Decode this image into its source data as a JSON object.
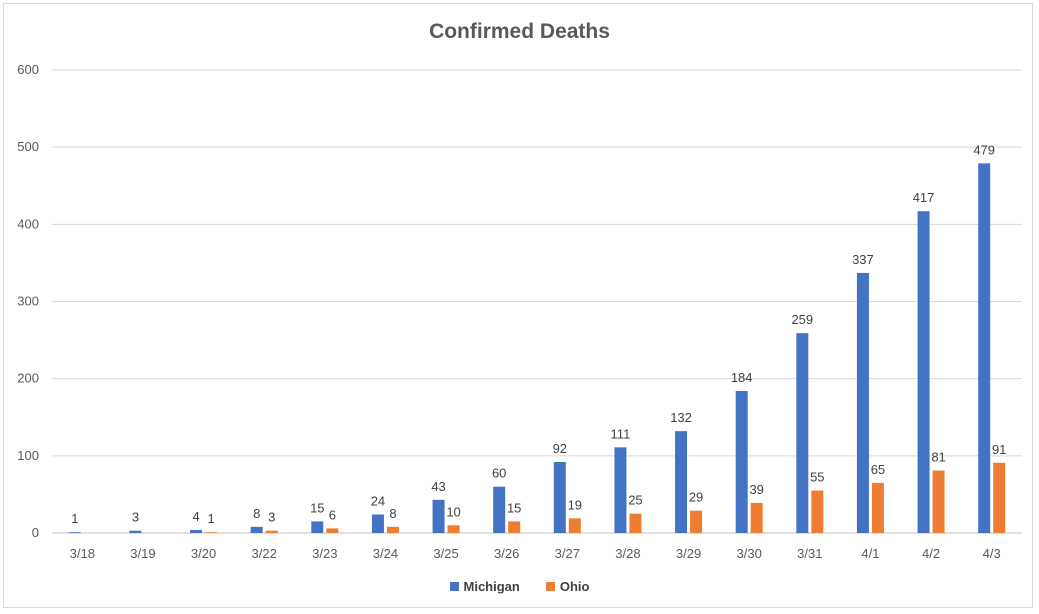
{
  "chart_data": {
    "type": "bar",
    "title": "Confirmed Deaths",
    "xlabel": "",
    "ylabel": "",
    "ylim": [
      0,
      600
    ],
    "yticks": [
      0,
      100,
      200,
      300,
      400,
      500,
      600
    ],
    "grid": true,
    "legend_position": "bottom",
    "categories": [
      "3/18",
      "3/19",
      "3/20",
      "3/22",
      "3/23",
      "3/24",
      "3/25",
      "3/26",
      "3/27",
      "3/28",
      "3/29",
      "3/30",
      "3/31",
      "4/1",
      "4/2",
      "4/3"
    ],
    "series": [
      {
        "name": "Michigan",
        "color": "#4472c4",
        "values": [
          1,
          3,
          4,
          8,
          15,
          24,
          43,
          60,
          92,
          111,
          132,
          184,
          259,
          337,
          417,
          479
        ],
        "labels": [
          "1",
          "3",
          "4",
          "8",
          "15",
          "24",
          "43",
          "60",
          "92",
          "111",
          "132",
          "184",
          "259",
          "337",
          "417",
          "479"
        ]
      },
      {
        "name": "Ohio",
        "color": "#ed7d31",
        "values": [
          null,
          null,
          1,
          3,
          6,
          8,
          10,
          15,
          19,
          25,
          29,
          39,
          55,
          65,
          81,
          91
        ],
        "labels": [
          "",
          "",
          "1",
          "3",
          "6",
          "8",
          "10",
          "15",
          "19",
          "25",
          "29",
          "39",
          "55",
          "65",
          "81",
          "91"
        ]
      }
    ]
  }
}
